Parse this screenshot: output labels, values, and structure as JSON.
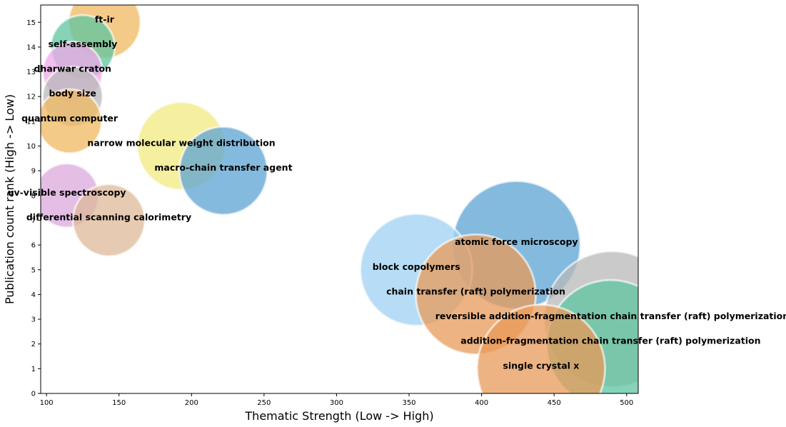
{
  "chart_data": {
    "type": "scatter",
    "variant": "bubble",
    "title": "",
    "xlabel": "Thematic Strength (Low -> High)",
    "ylabel": "Publication count rank (High -> Low)",
    "xlim": [
      96,
      508
    ],
    "ylim": [
      0,
      15.7
    ],
    "xticks": [
      100,
      150,
      200,
      250,
      300,
      350,
      400,
      450,
      500
    ],
    "yticks": [
      0,
      1,
      2,
      3,
      4,
      5,
      6,
      7,
      8,
      9,
      10,
      11,
      12,
      13,
      14,
      15
    ],
    "grid": false,
    "legend": "none",
    "points": [
      {
        "label": "ft-ir",
        "x": 140,
        "y": 15,
        "size": 18,
        "color": "#f0b860"
      },
      {
        "label": "self-assembly",
        "x": 125,
        "y": 14,
        "size": 16,
        "color": "#5ec4a0"
      },
      {
        "label": "dharwar craton",
        "x": 118,
        "y": 13,
        "size": 15,
        "color": "#f0a8e8"
      },
      {
        "label": "body size",
        "x": 118,
        "y": 12,
        "size": 15,
        "color": "#b8b8b8"
      },
      {
        "label": "quantum computer",
        "x": 116,
        "y": 11,
        "size": 16,
        "color": "#f0b860"
      },
      {
        "label": "narrow molecular weight distribution",
        "x": 193,
        "y": 10,
        "size": 22,
        "color": "#f2ea80"
      },
      {
        "label": "macro-chain transfer agent",
        "x": 222,
        "y": 9,
        "size": 22,
        "color": "#5ca3d4"
      },
      {
        "label": "uv-visible spectroscopy",
        "x": 114,
        "y": 8,
        "size": 16,
        "color": "#dba8dc"
      },
      {
        "label": "differential scanning calorimetry",
        "x": 143,
        "y": 7,
        "size": 18,
        "color": "#ddb898"
      },
      {
        "label": "atomic force microscopy",
        "x": 424,
        "y": 6,
        "size": 32,
        "color": "#5ca3d4"
      },
      {
        "label": "block copolymers",
        "x": 355,
        "y": 5,
        "size": 28,
        "color": "#9ed2f2"
      },
      {
        "label": "chain transfer (raft) polymerization",
        "x": 396,
        "y": 4,
        "size": 30,
        "color": "#e89a58"
      },
      {
        "label": "reversible addition-fragmentation chain transfer (raft) polymerization",
        "x": 490,
        "y": 3,
        "size": 34,
        "color": "#b8b8b8"
      },
      {
        "label": "addition-fragmentation chain transfer (raft) polymerization",
        "x": 489,
        "y": 2,
        "size": 32,
        "color": "#5ec4a0"
      },
      {
        "label": "single crystal x",
        "x": 441,
        "y": 1,
        "size": 32,
        "color": "#e89a58"
      }
    ]
  }
}
